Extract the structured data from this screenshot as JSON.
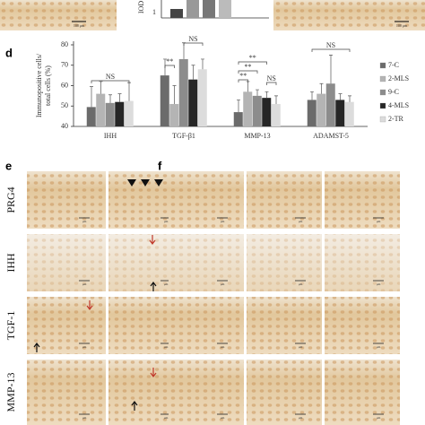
{
  "chart_data": {
    "type": "bar",
    "panel": "d",
    "ylabel": [
      "Immunopositive cells/",
      "total cells (%)"
    ],
    "categories": [
      "IHH",
      "TGF-β1",
      "MMP-13",
      "ADAMST-5"
    ],
    "ylim": [
      40,
      80
    ],
    "yticks": [
      40,
      50,
      60,
      70,
      80
    ],
    "grid": false,
    "legend": "right",
    "series": [
      {
        "name": "7-C",
        "color": "#6b6b6b",
        "values": [
          49.5,
          65,
          47,
          53
        ],
        "errors": [
          10,
          8,
          6,
          4
        ]
      },
      {
        "name": "2-MLS",
        "color": "#b4b4b4",
        "values": [
          56,
          51,
          57,
          56
        ],
        "errors": [
          6,
          9,
          5,
          5
        ]
      },
      {
        "name": "9-C",
        "color": "#8c8c8c",
        "values": [
          51.5,
          73,
          55,
          61
        ],
        "errors": [
          4,
          8,
          3,
          14
        ]
      },
      {
        "name": "4-MLS",
        "color": "#262626",
        "values": [
          52,
          63,
          54,
          53
        ],
        "errors": [
          4,
          7,
          3,
          3
        ]
      },
      {
        "name": "2-TR",
        "color": "#dcdcdc",
        "values": [
          52.5,
          68,
          51,
          52
        ],
        "errors": [
          9,
          5,
          4,
          3
        ]
      }
    ],
    "annotations": [
      "NS",
      "**",
      "NS",
      "**",
      "**",
      "**",
      "NS",
      "NS"
    ]
  },
  "top_strip": {
    "ylabel": "IOD",
    "ytick": "1",
    "scale_bar": "100 μm"
  },
  "panels": {
    "e": "e",
    "f": "f",
    "rows": [
      "PRG4",
      "IHH",
      "TGF-1",
      "MMP-13"
    ],
    "scale_bar": "μm"
  }
}
